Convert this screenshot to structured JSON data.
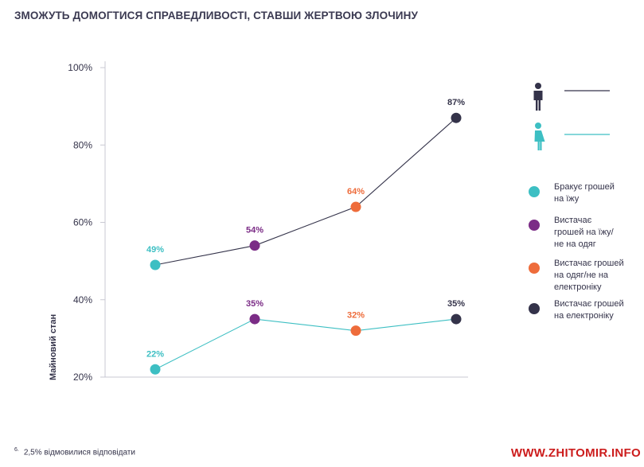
{
  "title": "ЗМОЖУТЬ ДОМОГТИСЯ СПРАВЕДЛИВОСТІ, СТАВШИ ЖЕРТВОЮ ЗЛОЧИНУ",
  "footnote": {
    "marker": "6.",
    "text": "2,5% відмовилися відповідати"
  },
  "watermark": "WWW.ZHITOMIR.INFO",
  "colors": {
    "teal": "#3dbfc3",
    "purple": "#7b2c86",
    "orange": "#ee6c3b",
    "navy": "#34334a",
    "axis": "#c9c9d3"
  },
  "gender_legend": [
    {
      "icon": "male-person-icon",
      "color": "#34334a"
    },
    {
      "icon": "female-person-icon",
      "color": "#3dbfc3"
    }
  ],
  "chart_data": {
    "type": "line",
    "ylabel": "Майновий стан",
    "ylim": [
      20,
      100
    ],
    "yticks": [
      "20%",
      "40%",
      "60%",
      "80%",
      "100%"
    ],
    "categories": [
      "Бракує грошей\nна їжу",
      "Вистачає\nгрошей на їжу/\nне на одяг",
      "Вистачає грошей\nна одяг/не на\nелектроніку",
      "Вистачає грошей\nна електроніку"
    ],
    "category_colors": [
      "#3dbfc3",
      "#7b2c86",
      "#ee6c3b",
      "#34334a"
    ],
    "series": [
      {
        "line_color": "#34334a",
        "values": [
          49,
          54,
          64,
          87
        ],
        "labels": [
          "49%",
          "54%",
          "64%",
          "87%"
        ]
      },
      {
        "line_color": "#3dbfc3",
        "values": [
          22,
          35,
          32,
          35
        ],
        "labels": [
          "22%",
          "35%",
          "32%",
          "35%"
        ]
      }
    ],
    "legend_position": "right",
    "grid": false
  }
}
